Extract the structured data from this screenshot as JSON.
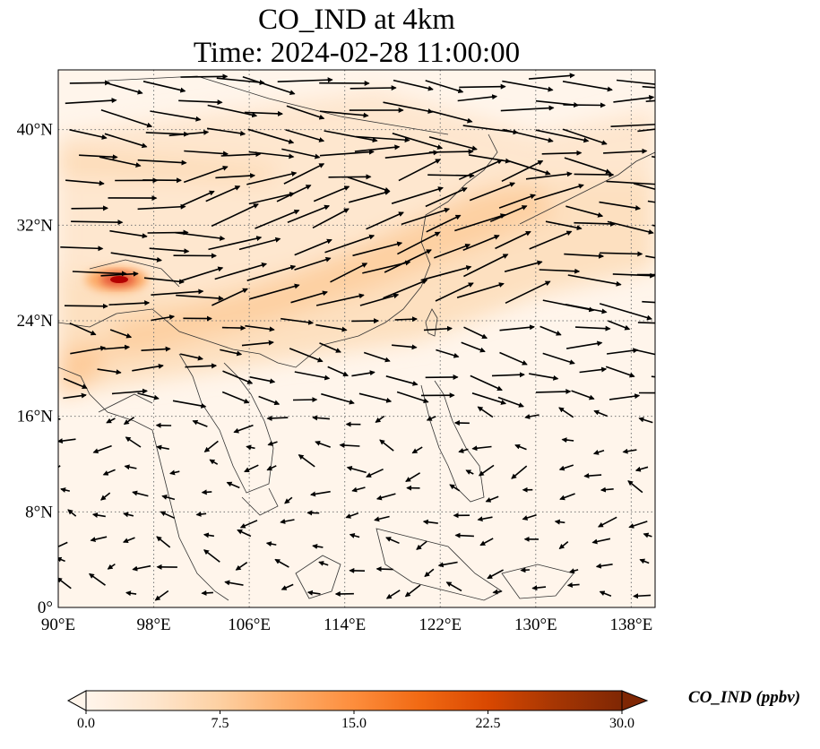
{
  "title": {
    "line1": "CO_IND at 4km",
    "line2": "Time: 2024-02-28 11:00:00"
  },
  "map": {
    "lon_range": [
      90,
      140
    ],
    "lat_range": [
      0,
      45
    ],
    "gridlines": "dotted",
    "lon_ticks": [
      {
        "value": 90,
        "label": "90°E"
      },
      {
        "value": 98,
        "label": "98°E"
      },
      {
        "value": 106,
        "label": "106°E"
      },
      {
        "value": 114,
        "label": "114°E"
      },
      {
        "value": 122,
        "label": "122°E"
      },
      {
        "value": 130,
        "label": "130°E"
      },
      {
        "value": 138,
        "label": "138°E"
      }
    ],
    "lat_ticks": [
      {
        "value": 0,
        "label": "0°"
      },
      {
        "value": 8,
        "label": "8°N"
      },
      {
        "value": 16,
        "label": "16°N"
      },
      {
        "value": 24,
        "label": "24°N"
      },
      {
        "value": 32,
        "label": "32°N"
      },
      {
        "value": 40,
        "label": "40°N"
      }
    ],
    "field": "CO_IND",
    "hotspot": {
      "lon": 95.5,
      "lat": 27.5,
      "value_ppbv": 30
    }
  },
  "colorbar": {
    "label": "CO_IND (ppbv)",
    "min": 0.0,
    "max": 30.0,
    "extend": "both",
    "colormap": [
      "#fff5eb",
      "#fee6ce",
      "#fdd0a2",
      "#fdae6b",
      "#fd8d3c",
      "#f16913",
      "#d94801",
      "#a63603",
      "#7f2704"
    ],
    "ticks": [
      "0.0",
      "7.5",
      "15.0",
      "22.5",
      "30.0"
    ]
  }
}
